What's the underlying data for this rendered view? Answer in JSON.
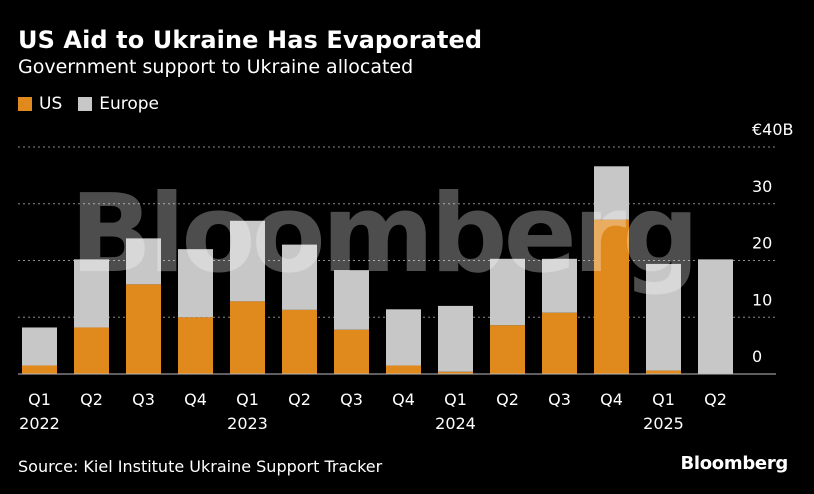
{
  "header": {
    "title": "US Aid to Ukraine Has Evaporated",
    "subtitle": "Government support to Ukraine allocated"
  },
  "legend": [
    {
      "label": "US",
      "color": "#e08a1e"
    },
    {
      "label": "Europe",
      "color": "#c7c7c7"
    }
  ],
  "watermark": "Bloomberg",
  "footer": {
    "source": "Source: Kiel Institute Ukraine Support Tracker",
    "brand": "Bloomberg"
  },
  "chart_data": {
    "type": "bar",
    "stacked": true,
    "categories": [
      "Q1 2022",
      "Q2 2022",
      "Q3 2022",
      "Q4 2022",
      "Q1 2023",
      "Q2 2023",
      "Q3 2023",
      "Q4 2023",
      "Q1 2024",
      "Q2 2024",
      "Q3 2024",
      "Q4 2024",
      "Q1 2025",
      "Q2 2025"
    ],
    "tick_labels": [
      {
        "quarter": "Q1",
        "year": "2022"
      },
      {
        "quarter": "Q2",
        "year": ""
      },
      {
        "quarter": "Q3",
        "year": ""
      },
      {
        "quarter": "Q4",
        "year": ""
      },
      {
        "quarter": "Q1",
        "year": "2023"
      },
      {
        "quarter": "Q2",
        "year": ""
      },
      {
        "quarter": "Q3",
        "year": ""
      },
      {
        "quarter": "Q4",
        "year": ""
      },
      {
        "quarter": "Q1",
        "year": "2024"
      },
      {
        "quarter": "Q2",
        "year": ""
      },
      {
        "quarter": "Q3",
        "year": ""
      },
      {
        "quarter": "Q4",
        "year": ""
      },
      {
        "quarter": "Q1",
        "year": "2025"
      },
      {
        "quarter": "Q2",
        "year": ""
      }
    ],
    "series": [
      {
        "name": "US",
        "color": "#e08a1e",
        "values": [
          1.5,
          8.2,
          15.8,
          10.0,
          12.8,
          11.3,
          7.8,
          1.5,
          0.4,
          8.6,
          10.8,
          27.2,
          0.6,
          0.0
        ]
      },
      {
        "name": "Europe",
        "color": "#c7c7c7",
        "values": [
          6.7,
          12.0,
          8.1,
          12.0,
          14.2,
          11.5,
          10.5,
          9.9,
          11.6,
          11.7,
          9.5,
          9.4,
          18.8,
          20.2
        ]
      }
    ],
    "y_ticks": [
      {
        "value": 40,
        "label": "€40B"
      },
      {
        "value": 30,
        "label": "30"
      },
      {
        "value": 20,
        "label": "20"
      },
      {
        "value": 10,
        "label": "10"
      },
      {
        "value": 0,
        "label": "0"
      }
    ],
    "ylim": [
      0,
      40
    ],
    "grid": true,
    "legend_position": "top-left"
  }
}
